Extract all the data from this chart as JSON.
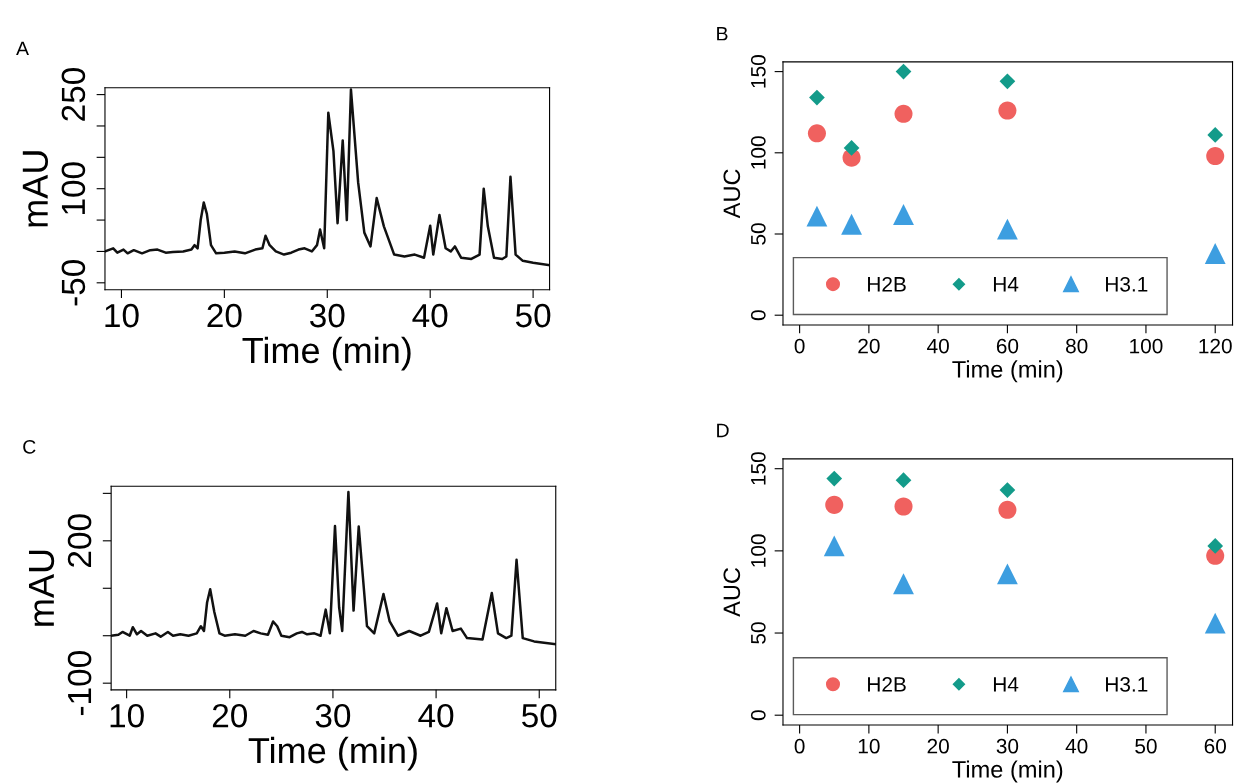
{
  "chart_data": [
    {
      "type": "line",
      "title": "A",
      "xlabel": "Time (min)",
      "ylabel": "mAU",
      "xlim": [
        8.4,
        51.6
      ],
      "ylim": [
        -61,
        261
      ],
      "xticks": [
        10,
        20,
        30,
        40,
        50
      ],
      "yticks": [
        -50,
        {
          "value": 0,
          "label": null
        },
        {
          "value": 50,
          "label": null
        },
        100,
        {
          "value": 150,
          "label": null
        },
        {
          "value": 200,
          "label": null
        },
        250
      ],
      "series": [
        {
          "color": "#111111",
          "x": [
            8.4,
            9.2,
            9.6,
            10.2,
            10.6,
            11.2,
            12,
            12.8,
            13.5,
            14.3,
            15,
            16,
            16.8,
            17.1,
            17.4,
            17.7,
            18,
            18.3,
            18.7,
            19.2,
            20,
            21,
            22,
            23,
            23.7,
            24,
            24.4,
            25,
            25.8,
            26.5,
            27.2,
            27.8,
            28.5,
            29,
            29.3,
            29.7,
            30.1,
            30.6,
            31,
            31.5,
            31.9,
            32.3,
            33,
            33.6,
            34.2,
            34.8,
            35.5,
            36.5,
            37.5,
            38.5,
            39.4,
            40,
            40.3,
            40.9,
            41.5,
            42,
            42.4,
            43,
            44,
            44.8,
            45.2,
            45.6,
            46.2,
            47,
            47.4,
            47.8,
            48.3,
            49,
            50,
            51.6
          ],
          "values": [
            0,
            5,
            -2,
            3,
            -3,
            2,
            -3,
            2,
            3,
            -2,
            -1,
            0,
            3,
            10,
            5,
            50,
            78,
            60,
            10,
            -3,
            -2,
            0,
            -3,
            3,
            5,
            25,
            10,
            0,
            -5,
            -2,
            3,
            5,
            0,
            10,
            35,
            5,
            221,
            160,
            45,
            177,
            50,
            258,
            110,
            30,
            8,
            85,
            40,
            -5,
            -8,
            -5,
            -10,
            41,
            -5,
            58,
            5,
            0,
            8,
            -10,
            -12,
            -5,
            100,
            40,
            -10,
            -12,
            -8,
            119,
            -5,
            -15,
            -18,
            -22
          ]
        }
      ]
    },
    {
      "type": "scatter",
      "title": "B",
      "xlabel": "Time (min)",
      "ylabel": "AUC",
      "xlim": [
        -4.8,
        125
      ],
      "ylim": [
        -6,
        156
      ],
      "xticks": [
        0,
        20,
        40,
        60,
        80,
        100,
        120
      ],
      "yticks": [
        0,
        50,
        100,
        150
      ],
      "legend": "bottom left",
      "x": [
        5,
        15,
        30,
        60,
        120
      ],
      "series": [
        {
          "name": "H2B",
          "color": "#f0615f",
          "marker": "circle",
          "values": [
            112,
            97,
            124,
            126,
            98
          ]
        },
        {
          "name": "H4",
          "color": "#139b8a",
          "marker": "diamond",
          "values": [
            134,
            103,
            150,
            144,
            111
          ]
        },
        {
          "name": "H3.1",
          "color": "#3d9ee0",
          "marker": "triangle",
          "values": [
            61,
            56,
            62,
            53,
            38
          ]
        }
      ]
    },
    {
      "type": "line",
      "title": "C",
      "xlabel": "Time (min)",
      "ylabel": "mAU",
      "xlim": [
        8.5,
        51.6
      ],
      "ylim": [
        -114,
        315
      ],
      "xticks": [
        10,
        20,
        30,
        40,
        50
      ],
      "yticks": [
        -100,
        {
          "value": 0,
          "label": null
        },
        {
          "value": 100,
          "label": null
        },
        200,
        {
          "value": 300,
          "label": null
        }
      ],
      "series": [
        {
          "color": "#111111",
          "x": [
            8.5,
            9.2,
            9.6,
            10.3,
            10.6,
            11,
            11.4,
            12,
            12.8,
            13.3,
            14,
            14.5,
            15.2,
            16,
            16.8,
            17.2,
            17.5,
            17.8,
            18.1,
            18.5,
            19,
            19.5,
            20.5,
            21.5,
            22.3,
            23,
            23.7,
            24.2,
            24.6,
            25,
            25.8,
            26.5,
            27,
            27.5,
            28.2,
            28.8,
            29.3,
            29.7,
            30.2,
            30.6,
            30.9,
            31.5,
            32,
            32.5,
            33.3,
            34,
            34.9,
            35.5,
            36.3,
            37.4,
            38.5,
            39.3,
            40.1,
            40.5,
            41,
            41.6,
            42.4,
            43,
            44.5,
            45.4,
            46,
            46.8,
            47.3,
            47.8,
            48.4,
            49.5,
            51.6
          ],
          "values": [
            0,
            2,
            8,
            0,
            18,
            3,
            10,
            0,
            5,
            -2,
            8,
            0,
            3,
            0,
            5,
            20,
            10,
            70,
            98,
            50,
            5,
            0,
            3,
            0,
            10,
            5,
            2,
            30,
            20,
            0,
            -3,
            5,
            8,
            3,
            5,
            0,
            55,
            5,
            231,
            60,
            10,
            303,
            53,
            230,
            20,
            5,
            88,
            30,
            0,
            10,
            0,
            8,
            68,
            5,
            58,
            10,
            15,
            -5,
            -8,
            90,
            5,
            -5,
            0,
            160,
            -5,
            -12,
            -18
          ]
        }
      ]
    },
    {
      "type": "scatter",
      "title": "D",
      "xlabel": "Time (min)",
      "ylabel": "AUC",
      "xlim": [
        -2.4,
        62.5
      ],
      "ylim": [
        -6,
        156
      ],
      "xticks": [
        0,
        10,
        20,
        30,
        40,
        50,
        60
      ],
      "yticks": [
        0,
        50,
        100,
        150
      ],
      "legend": "bottom left",
      "x": [
        5,
        15,
        30,
        60
      ],
      "series": [
        {
          "name": "H2B",
          "color": "#f0615f",
          "marker": "circle",
          "values": [
            128,
            127,
            125,
            97
          ]
        },
        {
          "name": "H4",
          "color": "#139b8a",
          "marker": "diamond",
          "values": [
            144,
            143,
            137,
            103
          ]
        },
        {
          "name": "H3.1",
          "color": "#3d9ee0",
          "marker": "triangle",
          "values": [
            103,
            80,
            86,
            56
          ]
        }
      ]
    }
  ]
}
